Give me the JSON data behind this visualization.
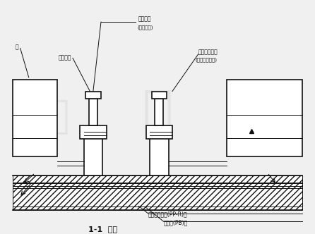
{
  "bg_color": "#f0f0f0",
  "line_color": "#111111",
  "watermark_color": "#cccccc",
  "title": "1-1  剪面",
  "label_bolt_cap": "管件帽盖",
  "label_bolt_cap_sub": "(左旋内纹)",
  "label_inner_thread": "内螺纹大",
  "label_wall": "墙",
  "label_tee": "管式内套三通",
  "label_tee_sub": "(左旋内纹接口)",
  "label_ppr": "无缝热熴居盘(PP-R)管",
  "label_pb": "遮缩管(PB)管",
  "lw_main": 1.2,
  "lw_thin": 0.7
}
